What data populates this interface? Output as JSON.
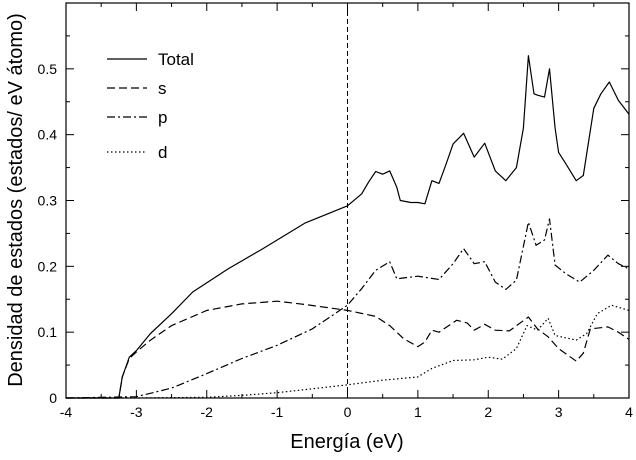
{
  "chart_data": {
    "type": "line",
    "title": "",
    "xlabel": "Energía (eV)",
    "ylabel": "Densidad de estados (estados/ eV átomo)",
    "xlim": [
      -4,
      4
    ],
    "ylim": [
      0,
      0.6
    ],
    "xticks": [
      -4,
      -3,
      -2,
      -1,
      0,
      1,
      2,
      3,
      4
    ],
    "yticks": [
      0,
      0.1,
      0.2,
      0.3,
      0.4,
      0.5
    ],
    "xtick_labels": [
      "-4",
      "-3",
      "-2",
      "-1",
      "0",
      "1",
      "2",
      "3",
      "4"
    ],
    "ytick_labels": [
      "0",
      "0.1",
      "0.2",
      "0.3",
      "0.4",
      "0.5"
    ],
    "grid": false,
    "legend_position": "top-left",
    "fermi_level_line": 0,
    "series": [
      {
        "name": "Total",
        "style": "solid",
        "x": [
          -4,
          -3.25,
          -3.2,
          -3.1,
          -3.0,
          -2.8,
          -2.5,
          -2.2,
          -1.7,
          -1.2,
          -0.6,
          0,
          0.2,
          0.3,
          0.4,
          0.5,
          0.6,
          0.7,
          0.75,
          0.9,
          1.0,
          1.1,
          1.2,
          1.3,
          1.4,
          1.5,
          1.65,
          1.8,
          1.95,
          2.1,
          2.25,
          2.4,
          2.5,
          2.57,
          2.65,
          2.7,
          2.8,
          2.87,
          2.95,
          3.0,
          3.1,
          3.25,
          3.35,
          3.5,
          3.6,
          3.72,
          3.85,
          4.0
        ],
        "y": [
          0,
          0,
          0.032,
          0.062,
          0.072,
          0.098,
          0.128,
          0.161,
          0.196,
          0.227,
          0.266,
          0.292,
          0.31,
          0.328,
          0.344,
          0.34,
          0.345,
          0.32,
          0.3,
          0.297,
          0.297,
          0.295,
          0.33,
          0.326,
          0.355,
          0.386,
          0.402,
          0.366,
          0.387,
          0.345,
          0.33,
          0.35,
          0.41,
          0.52,
          0.462,
          0.46,
          0.457,
          0.5,
          0.41,
          0.373,
          0.356,
          0.33,
          0.338,
          0.44,
          0.462,
          0.48,
          0.452,
          0.431
        ]
      },
      {
        "name": "s",
        "style": "dashed",
        "x": [
          -4,
          -3.25,
          -3.2,
          -3.1,
          -3.0,
          -2.8,
          -2.5,
          -2.0,
          -1.5,
          -1.0,
          -0.6,
          0,
          0.4,
          0.6,
          0.8,
          1.0,
          1.1,
          1.2,
          1.3,
          1.55,
          1.7,
          1.8,
          1.95,
          2.1,
          2.3,
          2.57,
          2.7,
          2.85,
          3.0,
          3.25,
          3.35,
          3.45,
          3.7,
          3.85,
          4.0
        ],
        "y": [
          0,
          0,
          0.032,
          0.06,
          0.07,
          0.088,
          0.11,
          0.133,
          0.143,
          0.147,
          0.142,
          0.133,
          0.124,
          0.11,
          0.09,
          0.078,
          0.085,
          0.103,
          0.1,
          0.118,
          0.114,
          0.103,
          0.112,
          0.103,
          0.102,
          0.123,
          0.105,
          0.093,
          0.075,
          0.056,
          0.068,
          0.105,
          0.108,
          0.1,
          0.089
        ]
      },
      {
        "name": "p",
        "style": "dash-dot",
        "x": [
          -4,
          -3.0,
          -2.5,
          -2.0,
          -1.5,
          -1.0,
          -0.5,
          0,
          0.2,
          0.4,
          0.6,
          0.7,
          1.0,
          1.3,
          1.5,
          1.65,
          1.8,
          1.95,
          2.1,
          2.25,
          2.4,
          2.57,
          2.68,
          2.8,
          2.87,
          2.95,
          3.1,
          3.3,
          3.5,
          3.7,
          3.85,
          4.0
        ],
        "y": [
          0,
          0.002,
          0.015,
          0.037,
          0.06,
          0.08,
          0.105,
          0.141,
          0.166,
          0.194,
          0.207,
          0.181,
          0.185,
          0.18,
          0.204,
          0.227,
          0.204,
          0.207,
          0.176,
          0.165,
          0.179,
          0.267,
          0.232,
          0.24,
          0.272,
          0.202,
          0.189,
          0.176,
          0.194,
          0.217,
          0.204,
          0.196
        ]
      },
      {
        "name": "d",
        "style": "dotted",
        "x": [
          -4,
          -3,
          -2,
          -1.5,
          -1,
          -0.5,
          0,
          0.5,
          1.0,
          1.2,
          1.5,
          1.8,
          2.0,
          2.2,
          2.4,
          2.55,
          2.7,
          2.85,
          2.95,
          3.25,
          3.4,
          3.55,
          3.75,
          4.0
        ],
        "y": [
          0,
          0,
          0.001,
          0.004,
          0.008,
          0.014,
          0.02,
          0.027,
          0.032,
          0.045,
          0.057,
          0.058,
          0.062,
          0.059,
          0.075,
          0.11,
          0.103,
          0.121,
          0.095,
          0.088,
          0.098,
          0.128,
          0.141,
          0.133
        ]
      }
    ],
    "colors": {
      "line": "#000000",
      "background": "#ffffff"
    }
  }
}
